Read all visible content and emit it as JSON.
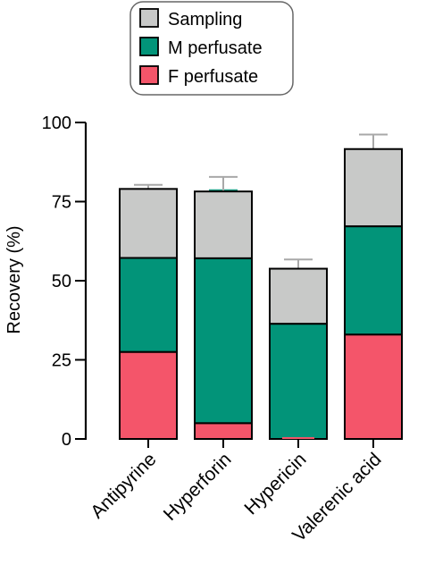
{
  "chart_data": {
    "type": "bar",
    "stacked": true,
    "title": "",
    "xlabel": "",
    "ylabel": "Recovery (%)",
    "ylim": [
      0,
      100
    ],
    "yticks": [
      0,
      25,
      50,
      75,
      100
    ],
    "grid": false,
    "legend_position": "top",
    "categories": [
      "Antipyrine",
      "Hyperforin",
      "Hypericin",
      "Valerenic acid"
    ],
    "series": [
      {
        "name": "F perfusate",
        "color": "#f4556a",
        "values": [
          27.5,
          5.0,
          0.0,
          33.0
        ],
        "error": [
          0.8,
          1.8,
          0.0,
          10.5
        ]
      },
      {
        "name": "M perfusate",
        "color": "#029479",
        "values": [
          29.7,
          52.1,
          36.4,
          34.2
        ],
        "error": [
          2.5,
          21.5,
          11.1,
          9.9
        ]
      },
      {
        "name": "Sampling",
        "color": "#c8c9c8",
        "values": [
          21.8,
          21.1,
          17.4,
          24.4
        ],
        "error": [
          1.3,
          4.6,
          2.9,
          4.6
        ]
      }
    ],
    "legend_order": [
      "Sampling",
      "M perfusate",
      "F perfusate"
    ]
  }
}
